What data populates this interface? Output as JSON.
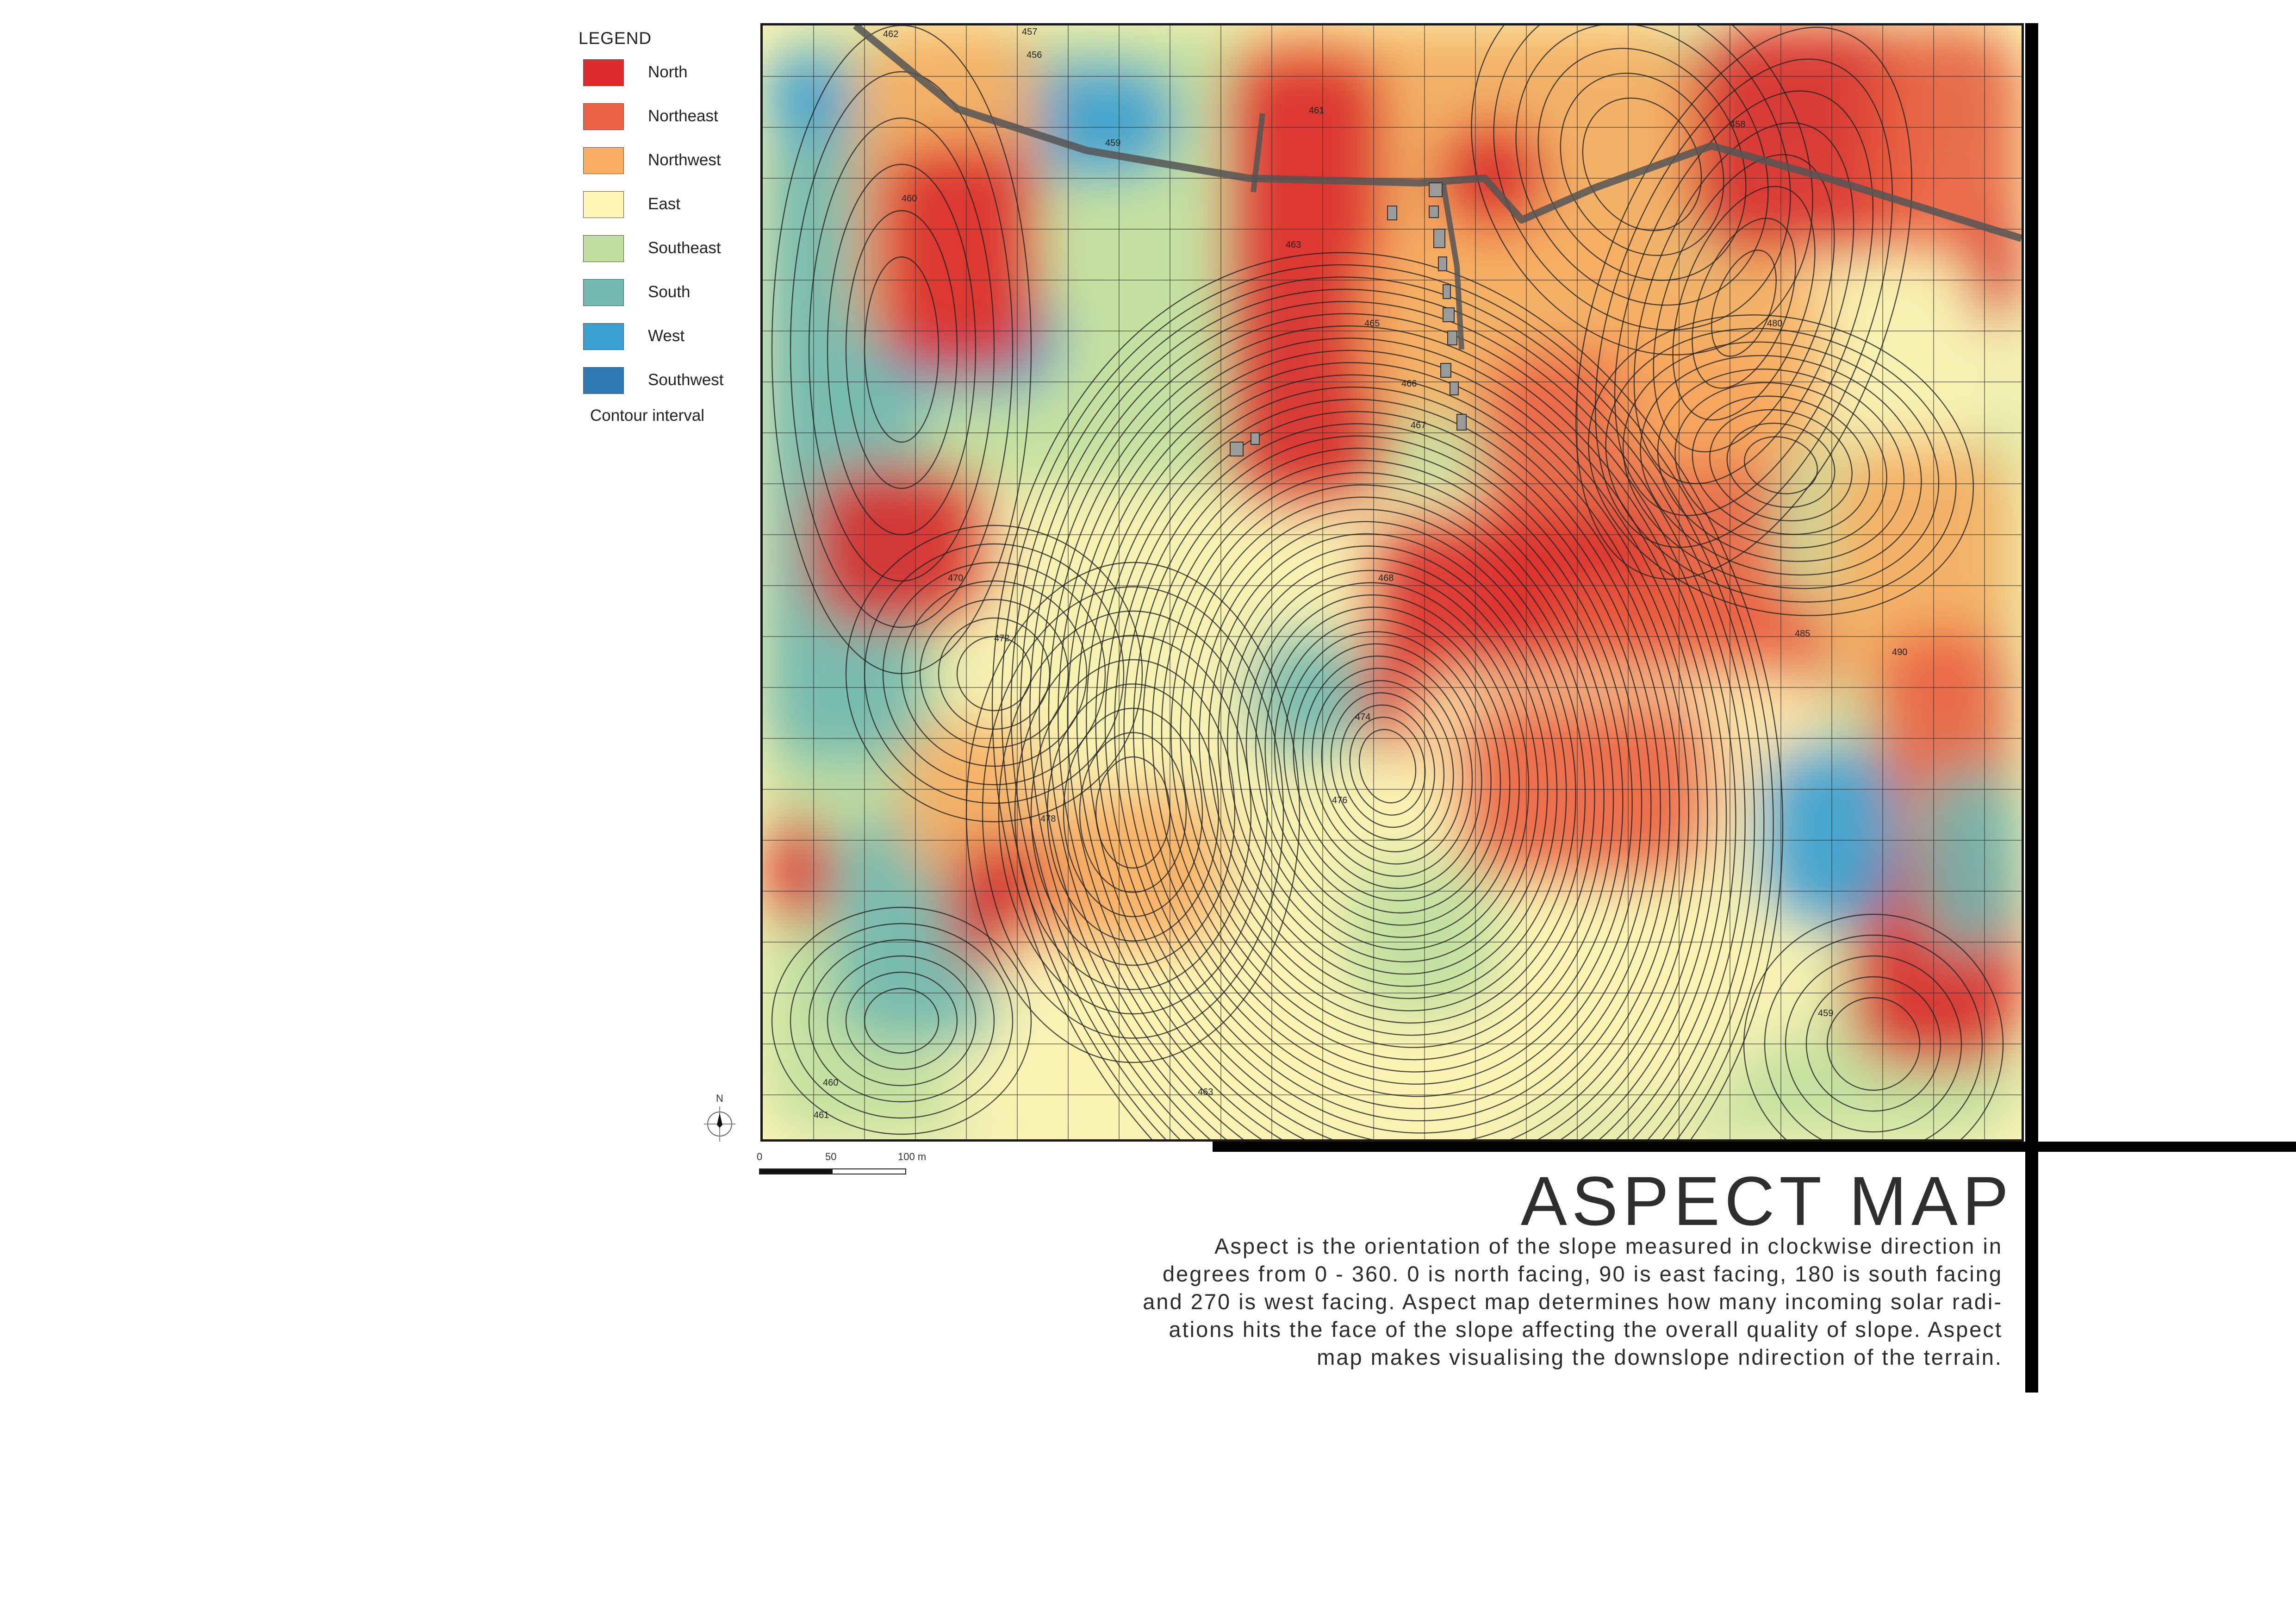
{
  "legend": {
    "title": "LEGEND",
    "items": [
      {
        "label": "North",
        "color": "#dc2b2a"
      },
      {
        "label": "Northeast",
        "color": "#ea6243"
      },
      {
        "label": "Northwest",
        "color": "#f8ad62"
      },
      {
        "label": "East",
        "color": "#fef4b5"
      },
      {
        "label": "Southeast",
        "color": "#bfdf9f"
      },
      {
        "label": "South",
        "color": "#70b8b0"
      },
      {
        "label": "West",
        "color": "#3a9fd3"
      },
      {
        "label": "Southwest",
        "color": "#2f78b6"
      }
    ],
    "contour_label": "Contour interval"
  },
  "north_arrow": {
    "letter": "N",
    "icon": "north-arrow-icon"
  },
  "scale_bar": {
    "labels": [
      "0",
      "50",
      "100 m"
    ]
  },
  "title": "ASPECT MAP",
  "description_lines": [
    "Aspect is the orientation of the slope measured in clockwise direction in",
    "degrees from 0 - 360. 0 is north facing, 90 is east facing, 180 is south facing",
    "and 270 is west facing. Aspect map determines how many incoming solar radi-",
    "ations hits the face of the slope affecting the overall quality of slope. Aspect",
    "map makes visualising the downslope ndirection of the terrain."
  ],
  "map": {
    "contour_labels": [
      "462",
      "457",
      "456",
      "459",
      "460",
      "461",
      "458",
      "463",
      "465",
      "466",
      "467",
      "468",
      "470",
      "472",
      "474",
      "476",
      "478",
      "480",
      "485",
      "490",
      "459",
      "460",
      "461",
      "463"
    ]
  }
}
